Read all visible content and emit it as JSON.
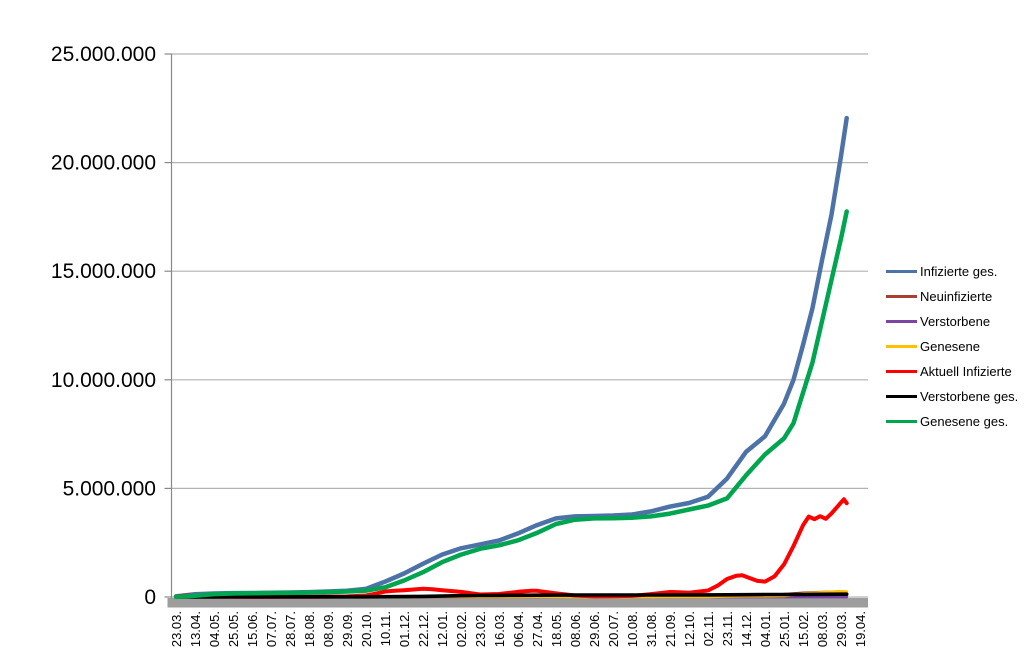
{
  "colors": {
    "background": "#ffffff",
    "gridline": "#b2b2b2",
    "axis": "#898989",
    "axis_band": "#9d9d9d",
    "text": "#000000"
  },
  "chart_data": {
    "type": "line",
    "title": "",
    "xlabel": "",
    "ylabel": "",
    "grid": true,
    "legend_position": "right",
    "ylim": [
      0,
      25000000
    ],
    "ytick_step": 5000000,
    "ytick_labels": [
      "0",
      "5.000.000",
      "10.000.000",
      "15.000.000",
      "20.000.000",
      "25.000.000"
    ],
    "x_labels": [
      "23.03.",
      "13.04.",
      "04.05.",
      "25.05.",
      "15.06.",
      "07.07.",
      "28.07.",
      "18.08.",
      "08.09.",
      "29.09.",
      "20.10.",
      "10.11.",
      "01.12.",
      "22.12.",
      "12.01.",
      "02.02.",
      "23.02.",
      "16.03.",
      "06.04.",
      "27.04.",
      "18.05.",
      "08.06.",
      "29.06.",
      "20.07.",
      "10.08.",
      "31.08.",
      "21.09.",
      "12.10.",
      "02.11.",
      "23.11.",
      "14.12.",
      "04.01.",
      "25.01.",
      "15.02.",
      "08.03.",
      "29.03.",
      "19.04."
    ],
    "x_unit_note": "series point x values are in x-label index units (labels are 21 days apart); y values are persons",
    "series": [
      {
        "name": "Infizierte ges.",
        "color": "#4d72a7",
        "width": 4.5,
        "points": [
          [
            0,
            30000
          ],
          [
            1,
            130000
          ],
          [
            2,
            163000
          ],
          [
            3,
            178000
          ],
          [
            4,
            186000
          ],
          [
            5,
            197000
          ],
          [
            6,
            206000
          ],
          [
            7,
            226000
          ],
          [
            8,
            253000
          ],
          [
            9,
            287000
          ],
          [
            10,
            373000
          ],
          [
            11,
            705000
          ],
          [
            12,
            1080000
          ],
          [
            13,
            1530000
          ],
          [
            14,
            1950000
          ],
          [
            15,
            2240000
          ],
          [
            16,
            2420000
          ],
          [
            17,
            2600000
          ],
          [
            18,
            2930000
          ],
          [
            19,
            3310000
          ],
          [
            20,
            3620000
          ],
          [
            21,
            3710000
          ],
          [
            22,
            3730000
          ],
          [
            23,
            3750000
          ],
          [
            24,
            3800000
          ],
          [
            25,
            3940000
          ],
          [
            26,
            4160000
          ],
          [
            27,
            4330000
          ],
          [
            28,
            4620000
          ],
          [
            29,
            5450000
          ],
          [
            30,
            6680000
          ],
          [
            31,
            7400000
          ],
          [
            32,
            8900000
          ],
          [
            32.5,
            10000000
          ],
          [
            33,
            11600000
          ],
          [
            33.5,
            13300000
          ],
          [
            34,
            15500000
          ],
          [
            34.5,
            17600000
          ],
          [
            35,
            20300000
          ],
          [
            35.3,
            22050000
          ]
        ]
      },
      {
        "name": "Neuinfizierte",
        "color": "#a93e35",
        "width": 2.8,
        "points": [
          [
            0,
            4000
          ],
          [
            0.5,
            6000
          ],
          [
            1,
            4000
          ],
          [
            2,
            1300
          ],
          [
            3,
            600
          ],
          [
            4,
            350
          ],
          [
            5,
            400
          ],
          [
            6,
            700
          ],
          [
            7,
            1500
          ],
          [
            8,
            1800
          ],
          [
            9,
            2100
          ],
          [
            10,
            8000
          ],
          [
            11,
            18500
          ],
          [
            12,
            18000
          ],
          [
            13,
            25000
          ],
          [
            14,
            17000
          ],
          [
            15,
            9500
          ],
          [
            16,
            8000
          ],
          [
            17,
            13000
          ],
          [
            18,
            18000
          ],
          [
            19,
            19000
          ],
          [
            20,
            8500
          ],
          [
            21,
            3000
          ],
          [
            22,
            900
          ],
          [
            23,
            1600
          ],
          [
            24,
            4500
          ],
          [
            25,
            10500
          ],
          [
            26,
            8500
          ],
          [
            27,
            9500
          ],
          [
            28,
            21000
          ],
          [
            29,
            50000
          ],
          [
            30,
            48000
          ],
          [
            31,
            42000
          ],
          [
            32,
            125000
          ],
          [
            33,
            190000
          ],
          [
            34,
            225000
          ],
          [
            35,
            250000
          ],
          [
            35.3,
            225000
          ]
        ]
      },
      {
        "name": "Verstorbene",
        "color": "#7c44a4",
        "width": 2.8,
        "points": [
          [
            0,
            100
          ],
          [
            1,
            220
          ],
          [
            2,
            150
          ],
          [
            3,
            60
          ],
          [
            4,
            25
          ],
          [
            5,
            10
          ],
          [
            6,
            8
          ],
          [
            7,
            8
          ],
          [
            8,
            10
          ],
          [
            9,
            15
          ],
          [
            10,
            35
          ],
          [
            11,
            140
          ],
          [
            12,
            410
          ],
          [
            13,
            620
          ],
          [
            14,
            840
          ],
          [
            15,
            700
          ],
          [
            16,
            440
          ],
          [
            17,
            250
          ],
          [
            18,
            190
          ],
          [
            19,
            250
          ],
          [
            20,
            210
          ],
          [
            21,
            100
          ],
          [
            22,
            55
          ],
          [
            23,
            25
          ],
          [
            24,
            20
          ],
          [
            25,
            35
          ],
          [
            26,
            60
          ],
          [
            27,
            75
          ],
          [
            28,
            120
          ],
          [
            29,
            250
          ],
          [
            30,
            390
          ],
          [
            31,
            350
          ],
          [
            32,
            190
          ],
          [
            33,
            200
          ],
          [
            34,
            250
          ],
          [
            35,
            300
          ],
          [
            35.3,
            280
          ]
        ]
      },
      {
        "name": "Genesene",
        "color": "#ffc000",
        "width": 3,
        "points": [
          [
            0,
            2200
          ],
          [
            1,
            4800
          ],
          [
            2,
            2600
          ],
          [
            3,
            950
          ],
          [
            4,
            420
          ],
          [
            5,
            400
          ],
          [
            6,
            500
          ],
          [
            7,
            1100
          ],
          [
            8,
            1500
          ],
          [
            9,
            1900
          ],
          [
            10,
            4800
          ],
          [
            11,
            12500
          ],
          [
            12,
            17500
          ],
          [
            13,
            20500
          ],
          [
            14,
            19500
          ],
          [
            15,
            14000
          ],
          [
            16,
            9000
          ],
          [
            17,
            9500
          ],
          [
            18,
            14000
          ],
          [
            19,
            17500
          ],
          [
            20,
            13500
          ],
          [
            21,
            6000
          ],
          [
            22,
            2100
          ],
          [
            23,
            1100
          ],
          [
            24,
            2600
          ],
          [
            25,
            6500
          ],
          [
            26,
            8500
          ],
          [
            27,
            8000
          ],
          [
            28,
            12500
          ],
          [
            29,
            31000
          ],
          [
            30,
            46000
          ],
          [
            31,
            46000
          ],
          [
            32,
            62000
          ],
          [
            33,
            155000
          ],
          [
            34,
            205000
          ],
          [
            35,
            255000
          ],
          [
            35.3,
            240000
          ]
        ]
      },
      {
        "name": "Aktuell Infizierte",
        "color": "#ff0000",
        "width": 4,
        "points": [
          [
            0,
            25000
          ],
          [
            0.5,
            65000
          ],
          [
            1,
            58000
          ],
          [
            1.5,
            40000
          ],
          [
            2,
            24000
          ],
          [
            3,
            10000
          ],
          [
            4,
            6000
          ],
          [
            5,
            6000
          ],
          [
            6,
            7000
          ],
          [
            7,
            14000
          ],
          [
            8,
            19000
          ],
          [
            9,
            26000
          ],
          [
            10,
            70000
          ],
          [
            10.5,
            150000
          ],
          [
            11,
            255000
          ],
          [
            11.5,
            290000
          ],
          [
            12,
            315000
          ],
          [
            12.5,
            345000
          ],
          [
            13,
            380000
          ],
          [
            13.5,
            360000
          ],
          [
            14,
            315000
          ],
          [
            15,
            235000
          ],
          [
            16,
            115000
          ],
          [
            17,
            140000
          ],
          [
            18,
            240000
          ],
          [
            18.7,
            290000
          ],
          [
            19,
            285000
          ],
          [
            20,
            170000
          ],
          [
            21,
            70000
          ],
          [
            22,
            28000
          ],
          [
            23,
            31000
          ],
          [
            24,
            52000
          ],
          [
            25,
            135000
          ],
          [
            26,
            230000
          ],
          [
            26.5,
            215000
          ],
          [
            27,
            200000
          ],
          [
            28,
            300000
          ],
          [
            28.5,
            520000
          ],
          [
            29,
            830000
          ],
          [
            29.5,
            980000
          ],
          [
            29.8,
            1000000
          ],
          [
            30.2,
            870000
          ],
          [
            30.6,
            740000
          ],
          [
            31,
            710000
          ],
          [
            31.5,
            950000
          ],
          [
            32,
            1500000
          ],
          [
            32.5,
            2350000
          ],
          [
            33,
            3300000
          ],
          [
            33.3,
            3700000
          ],
          [
            33.6,
            3580000
          ],
          [
            33.9,
            3720000
          ],
          [
            34.2,
            3600000
          ],
          [
            34.5,
            3850000
          ],
          [
            34.8,
            4150000
          ],
          [
            35,
            4350000
          ],
          [
            35.15,
            4500000
          ],
          [
            35.3,
            4320000
          ]
        ]
      },
      {
        "name": "Verstorbene ges.",
        "color": "#000000",
        "width": 3.6,
        "points": [
          [
            0,
            500
          ],
          [
            1,
            3100
          ],
          [
            2,
            6600
          ],
          [
            3,
            8300
          ],
          [
            4,
            8800
          ],
          [
            5,
            9000
          ],
          [
            6,
            9100
          ],
          [
            7,
            9200
          ],
          [
            8,
            9300
          ],
          [
            9,
            9500
          ],
          [
            10,
            9900
          ],
          [
            11,
            11700
          ],
          [
            12,
            17000
          ],
          [
            13,
            27500
          ],
          [
            14,
            43000
          ],
          [
            15,
            58000
          ],
          [
            16,
            68000
          ],
          [
            17,
            74000
          ],
          [
            18,
            77000
          ],
          [
            19,
            82000
          ],
          [
            20,
            86500
          ],
          [
            21,
            89500
          ],
          [
            22,
            90900
          ],
          [
            23,
            91500
          ],
          [
            24,
            91900
          ],
          [
            25,
            92300
          ],
          [
            26,
            93200
          ],
          [
            27,
            94500
          ],
          [
            28,
            96000
          ],
          [
            29,
            99500
          ],
          [
            30,
            107000
          ],
          [
            31,
            113000
          ],
          [
            32,
            117000
          ],
          [
            33,
            120500
          ],
          [
            34,
            124500
          ],
          [
            35,
            129000
          ],
          [
            35.3,
            130500
          ]
        ]
      },
      {
        "name": "Genesene ges.",
        "color": "#00a550",
        "width": 4.5,
        "points": [
          [
            0,
            3000
          ],
          [
            1,
            60000
          ],
          [
            2,
            132000
          ],
          [
            3,
            160000
          ],
          [
            4,
            172000
          ],
          [
            5,
            182000
          ],
          [
            6,
            190000
          ],
          [
            7,
            202000
          ],
          [
            8,
            225000
          ],
          [
            9,
            253000
          ],
          [
            10,
            295000
          ],
          [
            11,
            441000
          ],
          [
            12,
            760000
          ],
          [
            13,
            1140000
          ],
          [
            14,
            1600000
          ],
          [
            15,
            1950000
          ],
          [
            16,
            2220000
          ],
          [
            17,
            2380000
          ],
          [
            18,
            2610000
          ],
          [
            19,
            2950000
          ],
          [
            20,
            3360000
          ],
          [
            21,
            3560000
          ],
          [
            22,
            3620000
          ],
          [
            23,
            3630000
          ],
          [
            24,
            3650000
          ],
          [
            25,
            3710000
          ],
          [
            26,
            3840000
          ],
          [
            27,
            4030000
          ],
          [
            28,
            4210000
          ],
          [
            29,
            4540000
          ],
          [
            30,
            5600000
          ],
          [
            31,
            6560000
          ],
          [
            32,
            7300000
          ],
          [
            32.5,
            8000000
          ],
          [
            33,
            9400000
          ],
          [
            33.5,
            10800000
          ],
          [
            34,
            12700000
          ],
          [
            34.5,
            14600000
          ],
          [
            35,
            16500000
          ],
          [
            35.3,
            17750000
          ]
        ]
      }
    ]
  }
}
